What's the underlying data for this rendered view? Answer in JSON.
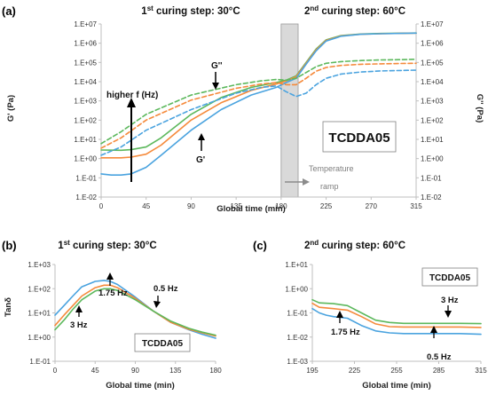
{
  "colors": {
    "f_0_5Hz": "#4aa3df",
    "f_1_75Hz": "#f58a3b",
    "f_3Hz": "#5cb85c",
    "axis": "#bfbfbf",
    "ramp_band": "#d9d9d9",
    "arrow": "#000000",
    "ramp_arrow": "#8c8c8c"
  },
  "chart_data": [
    {
      "panel": "(a)",
      "type": "line",
      "title_parts": [
        {
          "text": "1",
          "sup": "st",
          "rest": " curing step: 30°C"
        },
        {
          "text": "2",
          "sup": "nd",
          "rest": " curing step: 60°C"
        }
      ],
      "xlabel": "Global time (min)",
      "ylabel_left": "G' (Pa)",
      "ylabel_right": "G'' (Pa)",
      "ylim": [
        0.01,
        10000000
      ],
      "yscale": "log",
      "xlim": [
        0,
        315
      ],
      "xticks": [
        "0",
        "45",
        "90",
        "135",
        "180",
        "225",
        "270",
        "315"
      ],
      "yticks": [
        "1.E-02",
        "1.E-01",
        "1.E+00",
        "1.E+01",
        "1.E+02",
        "1.E+03",
        "1.E+04",
        "1.E+05",
        "1.E+06",
        "1.E+07"
      ],
      "ramp_band": [
        180,
        197
      ],
      "box_label": "TCDDA05",
      "annotations": {
        "higher_f": "higher f (Hz)",
        "g_double_prime": "G''",
        "g_prime": "G'",
        "temperature_ramp": [
          "Temperature",
          "ramp"
        ]
      },
      "series": [
        {
          "name": "G' 3 Hz",
          "freq": "3Hz",
          "style": "solid",
          "x": [
            0,
            20,
            30,
            45,
            60,
            90,
            120,
            150,
            175,
            185,
            195,
            205,
            215,
            225,
            240,
            260,
            280,
            300,
            315
          ],
          "y": [
            2.8,
            2.7,
            2.9,
            4,
            12,
            200,
            1500,
            5000,
            9000,
            12000,
            20000,
            100000,
            500000,
            1500000,
            2500000,
            3000000,
            3200000,
            3300000,
            3400000
          ]
        },
        {
          "name": "G' 1.75 Hz",
          "freq": "1_75Hz",
          "style": "solid",
          "x": [
            0,
            20,
            30,
            45,
            60,
            90,
            120,
            150,
            175,
            185,
            195,
            205,
            215,
            225,
            240,
            260,
            280,
            300,
            315
          ],
          "y": [
            1.1,
            1.1,
            1.2,
            1.7,
            5,
            100,
            800,
            3500,
            7500,
            11000,
            18000,
            90000,
            450000,
            1400000,
            2400000,
            2900000,
            3100000,
            3250000,
            3350000
          ]
        },
        {
          "name": "G' 0.5 Hz",
          "freq": "0_5Hz",
          "style": "solid",
          "x": [
            0,
            10,
            20,
            30,
            45,
            60,
            90,
            120,
            150,
            175,
            185,
            195,
            205,
            215,
            225,
            240,
            260,
            280,
            300,
            315
          ],
          "y": [
            0.16,
            0.14,
            0.14,
            0.16,
            0.35,
            1.5,
            30,
            350,
            2000,
            5000,
            9000,
            15000,
            80000,
            400000,
            1300000,
            2300000,
            2900000,
            3100000,
            3250000,
            3350000
          ]
        },
        {
          "name": "G'' 3 Hz",
          "freq": "3Hz",
          "style": "dashed",
          "x": [
            0,
            20,
            45,
            90,
            135,
            160,
            175,
            185,
            195,
            205,
            215,
            225,
            240,
            260,
            280,
            300,
            315
          ],
          "y": [
            6,
            25,
            200,
            2000,
            7000,
            11000,
            13000,
            12000,
            15000,
            30000,
            60000,
            90000,
            110000,
            125000,
            135000,
            140000,
            145000
          ]
        },
        {
          "name": "G'' 1.75 Hz",
          "freq": "1_75Hz",
          "style": "dashed",
          "x": [
            0,
            20,
            45,
            90,
            135,
            160,
            175,
            185,
            195,
            205,
            215,
            225,
            240,
            260,
            280,
            300,
            315
          ],
          "y": [
            3.5,
            12,
            100,
            1100,
            4500,
            7500,
            9000,
            7000,
            7000,
            15000,
            35000,
            55000,
            70000,
            80000,
            85000,
            88000,
            90000
          ]
        },
        {
          "name": "G'' 0.5 Hz",
          "freq": "0_5Hz",
          "style": "dashed",
          "x": [
            0,
            20,
            45,
            90,
            135,
            160,
            175,
            185,
            195,
            205,
            215,
            225,
            240,
            260,
            280,
            300,
            315
          ],
          "y": [
            1.5,
            4,
            30,
            350,
            2500,
            5000,
            6000,
            3000,
            1700,
            2500,
            7000,
            15000,
            25000,
            32000,
            36000,
            38000,
            40000
          ]
        }
      ]
    },
    {
      "panel": "(b)",
      "type": "line",
      "title_parts": [
        {
          "text": "1",
          "sup": "st",
          "rest": " curing step: 30°C"
        }
      ],
      "xlabel": "Global time (min)",
      "ylabel": "Tanδ",
      "ylim": [
        0.1,
        1000
      ],
      "yscale": "log",
      "xlim": [
        0,
        180
      ],
      "xticks": [
        "0",
        "45",
        "90",
        "135",
        "180"
      ],
      "yticks": [
        "1.E-01",
        "1.E+00",
        "1.E+01",
        "1.E+02",
        "1.E+03"
      ],
      "box_label": "TCDDA05",
      "labels": {
        "f_0_5Hz": "0.5 Hz",
        "f_1_75Hz": "1.75 Hz",
        "f_3Hz": "3 Hz"
      },
      "series": [
        {
          "name": "Tanδ 0.5 Hz",
          "freq": "0_5Hz",
          "x": [
            0,
            10,
            20,
            30,
            45,
            55,
            62,
            70,
            90,
            110,
            130,
            150,
            165,
            180
          ],
          "y": [
            8,
            20,
            50,
            120,
            200,
            220,
            200,
            150,
            45,
            12,
            4,
            2,
            1.3,
            0.9
          ]
        },
        {
          "name": "Tanδ 1.75 Hz",
          "freq": "1_75Hz",
          "x": [
            0,
            10,
            20,
            30,
            45,
            55,
            62,
            70,
            90,
            110,
            130,
            150,
            165,
            180
          ],
          "y": [
            3,
            8,
            20,
            50,
            110,
            140,
            140,
            110,
            40,
            12,
            4,
            2.1,
            1.5,
            1.1
          ]
        },
        {
          "name": "Tanδ 3 Hz",
          "freq": "3Hz",
          "x": [
            0,
            10,
            20,
            30,
            45,
            55,
            62,
            70,
            90,
            110,
            130,
            150,
            165,
            180
          ],
          "y": [
            2,
            5,
            14,
            35,
            80,
            100,
            100,
            85,
            35,
            12,
            4.5,
            2.3,
            1.6,
            1.2
          ]
        }
      ]
    },
    {
      "panel": "(c)",
      "type": "line",
      "title_parts": [
        {
          "text": "2",
          "sup": "nd",
          "rest": " curing step: 60°C"
        }
      ],
      "xlabel": "Global time (min)",
      "ylim": [
        0.001,
        10
      ],
      "yscale": "log",
      "xlim": [
        195,
        315
      ],
      "xticks": [
        "195",
        "225",
        "255",
        "285",
        "315"
      ],
      "yticks": [
        "1.E-03",
        "1.E-02",
        "1.E-01",
        "1.E+00",
        "1.E+01"
      ],
      "box_label": "TCDDA05",
      "labels": {
        "f_0_5Hz": "0.5 Hz",
        "f_1_75Hz": "1.75 Hz",
        "f_3Hz": "3 Hz"
      },
      "series": [
        {
          "name": "Tanδ 3 Hz",
          "freq": "3Hz",
          "x": [
            195,
            200,
            210,
            220,
            230,
            240,
            250,
            260,
            270,
            285,
            300,
            315
          ],
          "y": [
            0.35,
            0.26,
            0.24,
            0.2,
            0.1,
            0.05,
            0.04,
            0.037,
            0.037,
            0.037,
            0.037,
            0.036
          ]
        },
        {
          "name": "Tanδ 1.75 Hz",
          "freq": "1_75Hz",
          "x": [
            195,
            200,
            210,
            220,
            230,
            240,
            250,
            260,
            270,
            285,
            300,
            315
          ],
          "y": [
            0.25,
            0.17,
            0.15,
            0.13,
            0.07,
            0.035,
            0.027,
            0.026,
            0.026,
            0.026,
            0.026,
            0.025
          ]
        },
        {
          "name": "Tanδ 0.5 Hz",
          "freq": "0_5Hz",
          "x": [
            195,
            200,
            205,
            210,
            220,
            230,
            240,
            250,
            260,
            270,
            285,
            300,
            315
          ],
          "y": [
            0.15,
            0.1,
            0.08,
            0.07,
            0.06,
            0.03,
            0.018,
            0.015,
            0.014,
            0.014,
            0.014,
            0.014,
            0.013
          ]
        }
      ]
    }
  ]
}
